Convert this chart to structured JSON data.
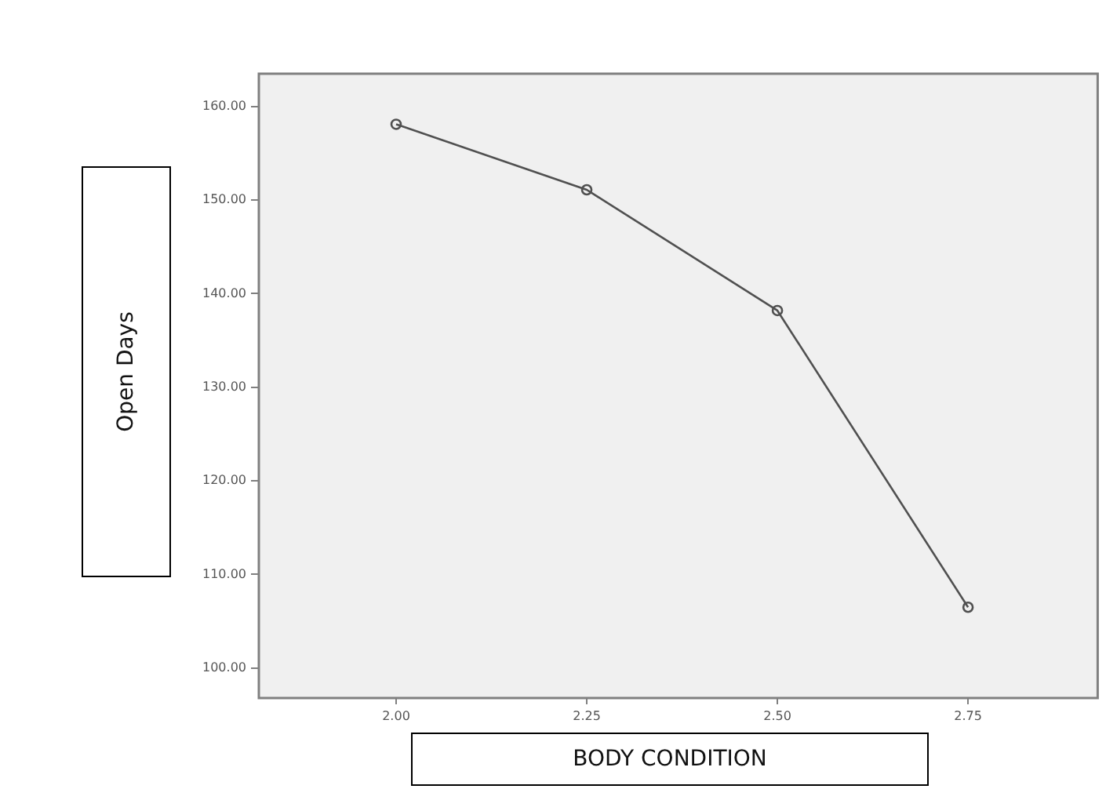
{
  "chart_data": {
    "type": "line",
    "xlabel": "BODY CONDITION",
    "ylabel": "Open Days",
    "x": [
      2.0,
      2.25,
      2.5,
      2.75
    ],
    "series": [
      {
        "color": "#505050",
        "values": [
          158.1,
          151.1,
          138.2,
          106.5
        ]
      }
    ],
    "xlim": [
      1.82,
      2.92
    ],
    "ylim": [
      96.8,
      163.5
    ],
    "xticks": [
      {
        "value": 2,
        "label": "2.00"
      },
      {
        "value": 2.25,
        "label": "2.25"
      },
      {
        "value": 2.5,
        "label": "2.50"
      },
      {
        "value": 2.75,
        "label": "2.75"
      }
    ],
    "yticks": [
      {
        "value": 100,
        "label": "100.00"
      },
      {
        "value": 110,
        "label": "110.00"
      },
      {
        "value": 120,
        "label": "120.00"
      },
      {
        "value": 130,
        "label": "130.00"
      },
      {
        "value": 140,
        "label": "140.00"
      },
      {
        "value": 150,
        "label": "150.00"
      },
      {
        "value": 160,
        "label": "160.00"
      }
    ],
    "legend": false,
    "marker": "circle",
    "line_style": "solid"
  }
}
